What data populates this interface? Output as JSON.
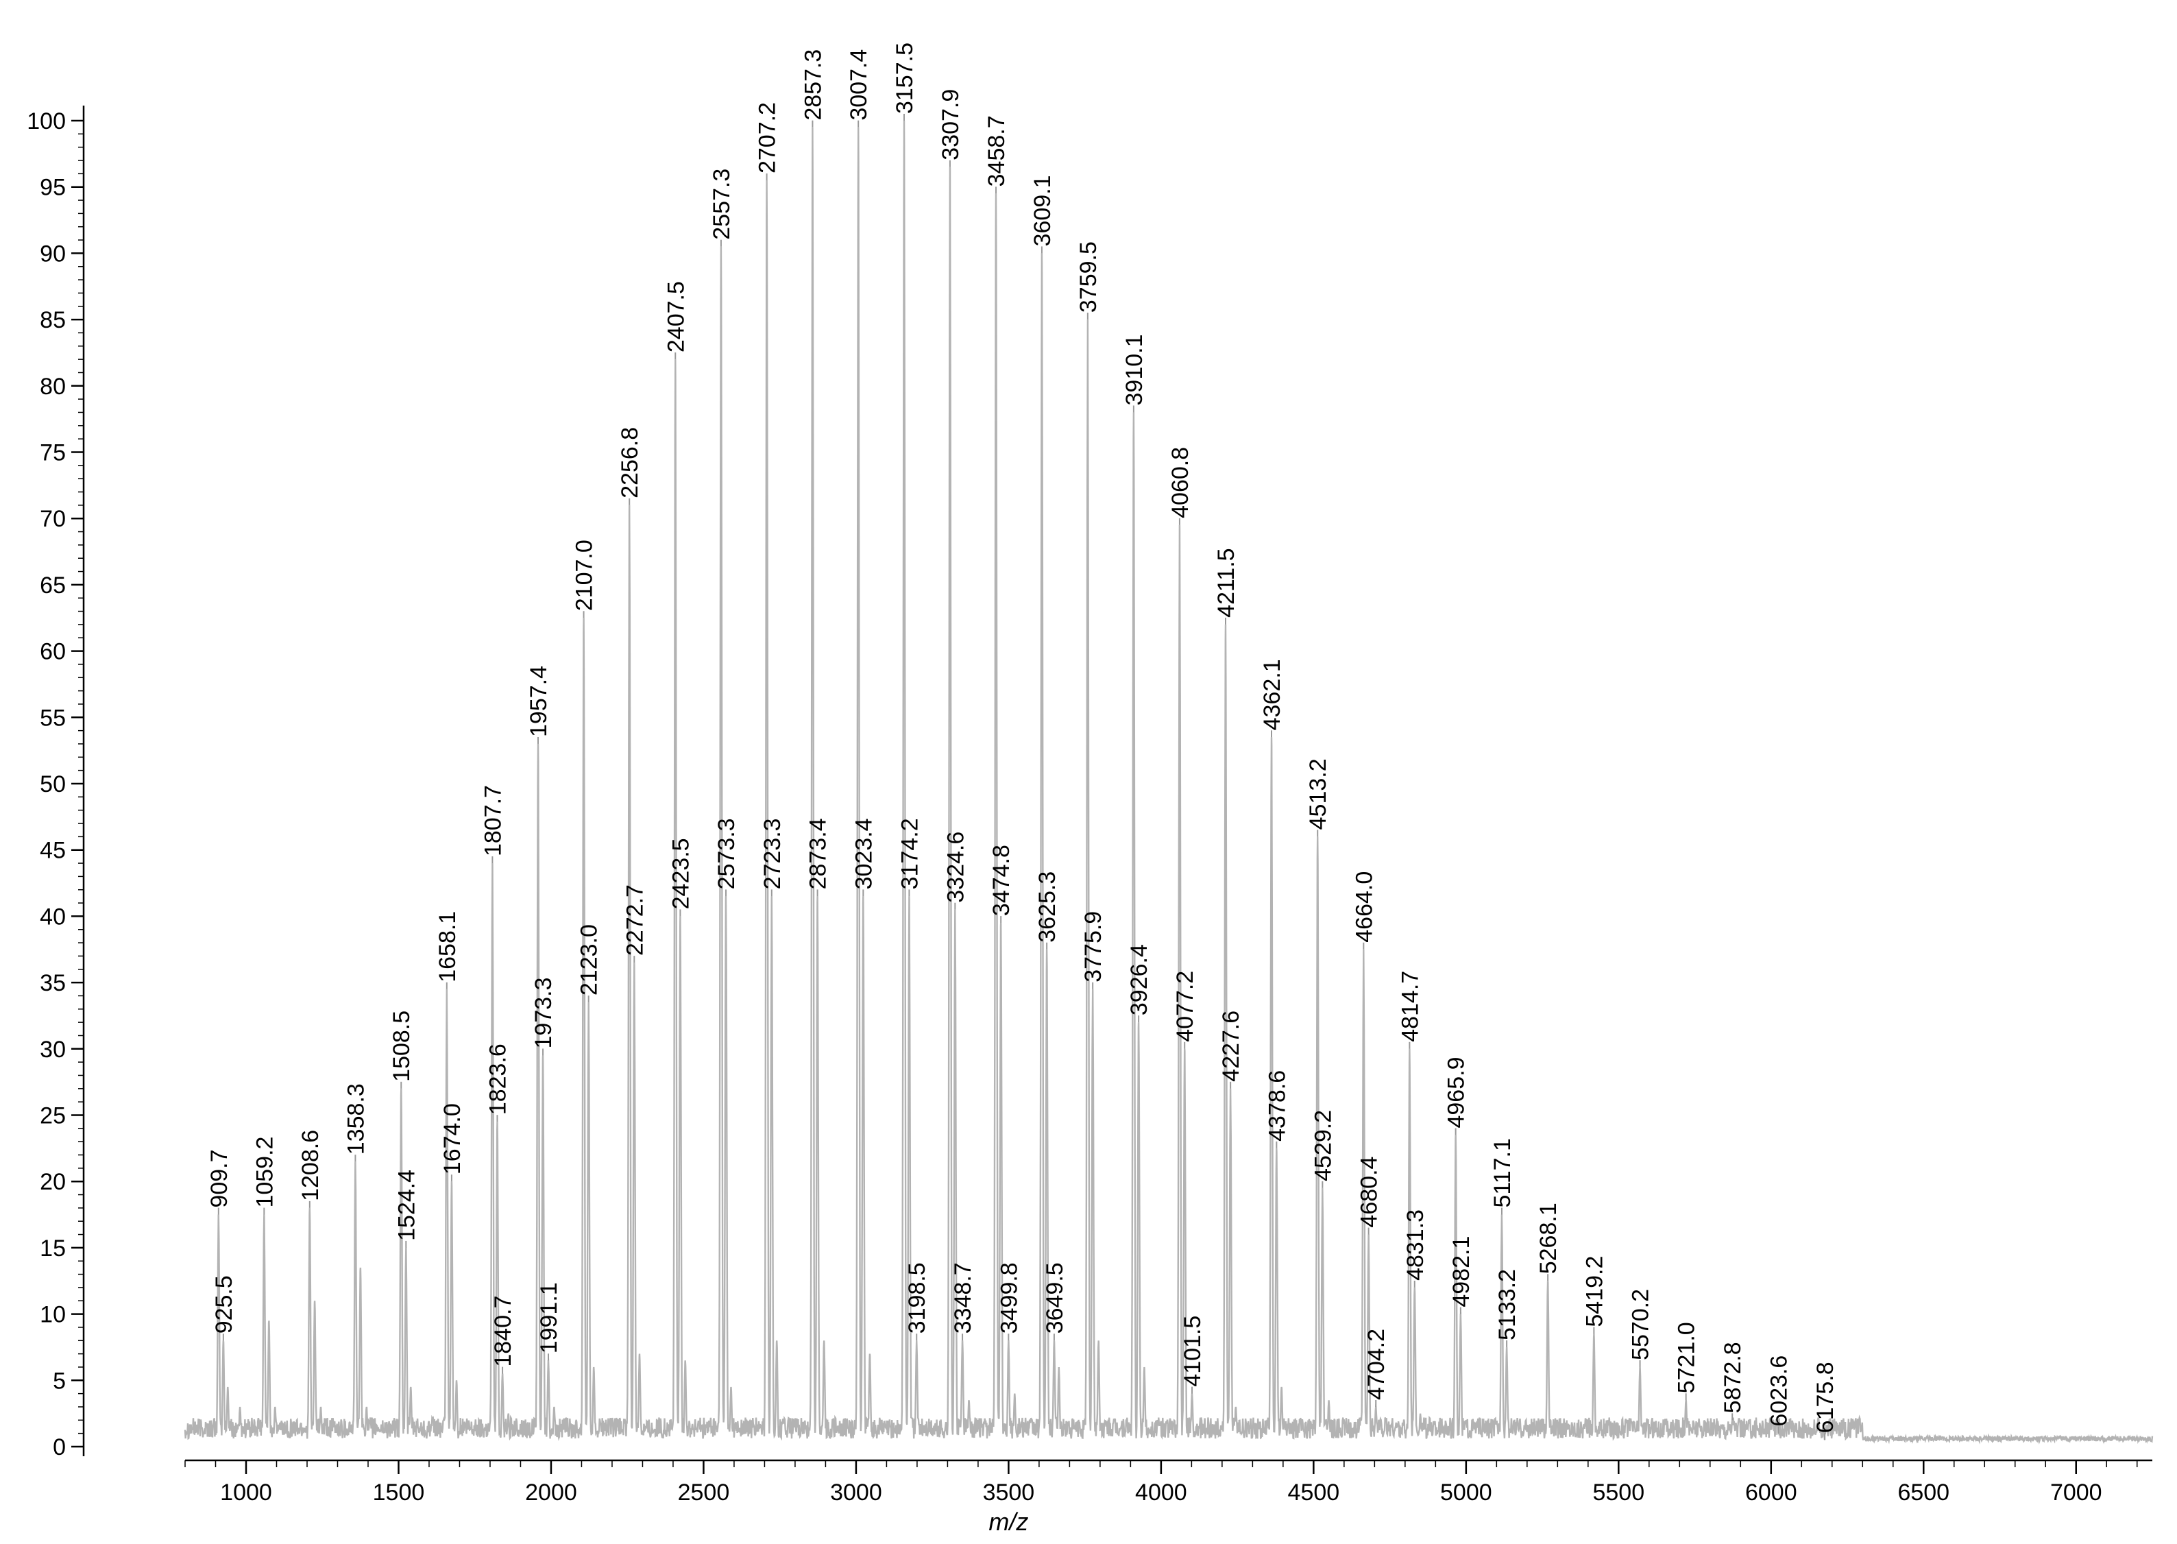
{
  "chart_data": {
    "type": "line",
    "title": "",
    "xlabel": "m/z",
    "ylabel": "",
    "xlim": [
      800,
      7250
    ],
    "ylim": [
      0,
      100
    ],
    "x_ticks": [
      1000,
      1500,
      2000,
      2500,
      3000,
      3500,
      4000,
      4500,
      5000,
      5500,
      6000,
      6500,
      7000
    ],
    "y_ticks": [
      0,
      5,
      10,
      15,
      20,
      25,
      30,
      35,
      40,
      45,
      50,
      55,
      60,
      65,
      70,
      75,
      80,
      85,
      90,
      95,
      100
    ],
    "grid": false,
    "series_color": "#b3b3b3",
    "label_line_color": "#999999",
    "peaks": [
      {
        "x": 909.7,
        "y": 17.5,
        "label": "909.7"
      },
      {
        "x": 925.5,
        "y": 8,
        "label": "925.5"
      },
      {
        "x": 1059.2,
        "y": 17.5,
        "label": "1059.2"
      },
      {
        "x": 1208.6,
        "y": 18,
        "label": "1208.6"
      },
      {
        "x": 1358.3,
        "y": 21.5,
        "label": "1358.3"
      },
      {
        "x": 1508.5,
        "y": 27,
        "label": "1508.5"
      },
      {
        "x": 1524.4,
        "y": 15,
        "label": "1524.4"
      },
      {
        "x": 1658.1,
        "y": 34.5,
        "label": "1658.1"
      },
      {
        "x": 1674.0,
        "y": 20,
        "label": "1674.0"
      },
      {
        "x": 1807.7,
        "y": 44,
        "label": "1807.7"
      },
      {
        "x": 1823.6,
        "y": 24.5,
        "label": "1823.6"
      },
      {
        "x": 1840.7,
        "y": 5.5,
        "label": "1840.7"
      },
      {
        "x": 1957.4,
        "y": 53,
        "label": "1957.4"
      },
      {
        "x": 1973.3,
        "y": 29.5,
        "label": "1973.3"
      },
      {
        "x": 1991.1,
        "y": 6.5,
        "label": "1991.1"
      },
      {
        "x": 2107.0,
        "y": 62.5,
        "label": "2107.0"
      },
      {
        "x": 2123.0,
        "y": 33.5,
        "label": "2123.0"
      },
      {
        "x": 2256.8,
        "y": 71,
        "label": "2256.8"
      },
      {
        "x": 2272.7,
        "y": 36.5,
        "label": "2272.7"
      },
      {
        "x": 2407.5,
        "y": 82,
        "label": "2407.5"
      },
      {
        "x": 2423.5,
        "y": 40,
        "label": "2423.5"
      },
      {
        "x": 2557.3,
        "y": 90.5,
        "label": "2557.3"
      },
      {
        "x": 2573.3,
        "y": 41.5,
        "label": "2573.3"
      },
      {
        "x": 2707.2,
        "y": 95.5,
        "label": "2707.2"
      },
      {
        "x": 2723.3,
        "y": 41.5,
        "label": "2723.3"
      },
      {
        "x": 2857.3,
        "y": 99.5,
        "label": "2857.3"
      },
      {
        "x": 2873.4,
        "y": 41.5,
        "label": "2873.4"
      },
      {
        "x": 3007.4,
        "y": 99.5,
        "label": "3007.4"
      },
      {
        "x": 3023.4,
        "y": 41.5,
        "label": "3023.4"
      },
      {
        "x": 3157.5,
        "y": 100,
        "label": "3157.5"
      },
      {
        "x": 3174.2,
        "y": 41.5,
        "label": "3174.2"
      },
      {
        "x": 3198.5,
        "y": 8,
        "label": "3198.5"
      },
      {
        "x": 3307.9,
        "y": 96.5,
        "label": "3307.9"
      },
      {
        "x": 3324.6,
        "y": 40.5,
        "label": "3324.6"
      },
      {
        "x": 3348.7,
        "y": 8,
        "label": "3348.7"
      },
      {
        "x": 3458.7,
        "y": 94.5,
        "label": "3458.7"
      },
      {
        "x": 3474.8,
        "y": 39.5,
        "label": "3474.8"
      },
      {
        "x": 3499.8,
        "y": 8,
        "label": "3499.8"
      },
      {
        "x": 3609.1,
        "y": 90,
        "label": "3609.1"
      },
      {
        "x": 3625.3,
        "y": 37.5,
        "label": "3625.3"
      },
      {
        "x": 3649.5,
        "y": 8,
        "label": "3649.5"
      },
      {
        "x": 3759.5,
        "y": 85,
        "label": "3759.5"
      },
      {
        "x": 3775.9,
        "y": 34.5,
        "label": "3775.9"
      },
      {
        "x": 3910.1,
        "y": 78,
        "label": "3910.1"
      },
      {
        "x": 3926.4,
        "y": 32,
        "label": "3926.4"
      },
      {
        "x": 4060.8,
        "y": 69.5,
        "label": "4060.8"
      },
      {
        "x": 4077.2,
        "y": 30,
        "label": "4077.2"
      },
      {
        "x": 4101.5,
        "y": 4,
        "label": "4101.5"
      },
      {
        "x": 4211.5,
        "y": 62,
        "label": "4211.5"
      },
      {
        "x": 4227.6,
        "y": 27,
        "label": "4227.6"
      },
      {
        "x": 4362.1,
        "y": 53.5,
        "label": "4362.1"
      },
      {
        "x": 4378.6,
        "y": 22.5,
        "label": "4378.6"
      },
      {
        "x": 4513.2,
        "y": 46,
        "label": "4513.2"
      },
      {
        "x": 4529.2,
        "y": 19.5,
        "label": "4529.2"
      },
      {
        "x": 4664.0,
        "y": 37.5,
        "label": "4664.0"
      },
      {
        "x": 4680.4,
        "y": 16,
        "label": "4680.4"
      },
      {
        "x": 4704.2,
        "y": 3,
        "label": "4704.2"
      },
      {
        "x": 4814.7,
        "y": 30,
        "label": "4814.7"
      },
      {
        "x": 4831.3,
        "y": 12,
        "label": "4831.3"
      },
      {
        "x": 4965.9,
        "y": 23.5,
        "label": "4965.9"
      },
      {
        "x": 4982.1,
        "y": 10,
        "label": "4982.1"
      },
      {
        "x": 5117.1,
        "y": 17.5,
        "label": "5117.1"
      },
      {
        "x": 5133.2,
        "y": 7.5,
        "label": "5133.2"
      },
      {
        "x": 5268.1,
        "y": 12.5,
        "label": "5268.1"
      },
      {
        "x": 5419.2,
        "y": 8.5,
        "label": "5419.2"
      },
      {
        "x": 5570.2,
        "y": 6,
        "label": "5570.2"
      },
      {
        "x": 5721.0,
        "y": 3.5,
        "label": "5721.0"
      },
      {
        "x": 5872.8,
        "y": 2,
        "label": "5872.8"
      },
      {
        "x": 6023.6,
        "y": 1,
        "label": "6023.6"
      },
      {
        "x": 6175.8,
        "y": 0.5,
        "label": "6175.8"
      }
    ],
    "minor_peaks": [
      {
        "x": 940,
        "y": 4.5
      },
      {
        "x": 980,
        "y": 3
      },
      {
        "x": 1075,
        "y": 9.5
      },
      {
        "x": 1095,
        "y": 3
      },
      {
        "x": 1225,
        "y": 11
      },
      {
        "x": 1245,
        "y": 3
      },
      {
        "x": 1375,
        "y": 13.5
      },
      {
        "x": 1395,
        "y": 3
      },
      {
        "x": 1540,
        "y": 4.5
      },
      {
        "x": 1690,
        "y": 5
      },
      {
        "x": 1860,
        "y": 2.5
      },
      {
        "x": 2010,
        "y": 3
      },
      {
        "x": 2140,
        "y": 6
      },
      {
        "x": 2290,
        "y": 7
      },
      {
        "x": 2440,
        "y": 6.5
      },
      {
        "x": 2590,
        "y": 4.5
      },
      {
        "x": 2740,
        "y": 8
      },
      {
        "x": 2895,
        "y": 8
      },
      {
        "x": 3045,
        "y": 7
      },
      {
        "x": 3370,
        "y": 3.5
      },
      {
        "x": 3520,
        "y": 4
      },
      {
        "x": 3665,
        "y": 6
      },
      {
        "x": 3795,
        "y": 8
      },
      {
        "x": 3945,
        "y": 6
      },
      {
        "x": 4245,
        "y": 3
      },
      {
        "x": 4395,
        "y": 4.5
      },
      {
        "x": 4550,
        "y": 3.5
      },
      {
        "x": 4850,
        "y": 2.5
      },
      {
        "x": 5000,
        "y": 2
      },
      {
        "x": 5150,
        "y": 1.5
      },
      {
        "x": 5285,
        "y": 1.5
      },
      {
        "x": 5435,
        "y": 1
      },
      {
        "x": 5585,
        "y": 1
      },
      {
        "x": 6325,
        "y": 0.5
      },
      {
        "x": 6480,
        "y": 0.3
      }
    ]
  }
}
